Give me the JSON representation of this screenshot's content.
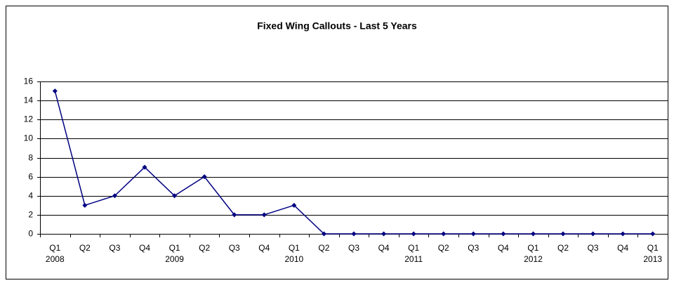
{
  "chart_data": {
    "type": "line",
    "title": "Fixed Wing Callouts - Last 5 Years",
    "categories": [
      "Q1",
      "Q2",
      "Q3",
      "Q4",
      "Q1",
      "Q2",
      "Q3",
      "Q4",
      "Q1",
      "Q2",
      "Q3",
      "Q4",
      "Q1",
      "Q2",
      "Q3",
      "Q4",
      "Q1",
      "Q2",
      "Q3",
      "Q4",
      "Q1"
    ],
    "year_labels": [
      "2008",
      null,
      null,
      null,
      "2009",
      null,
      null,
      null,
      "2010",
      null,
      null,
      null,
      "2011",
      null,
      null,
      null,
      "2012",
      null,
      null,
      null,
      "2013"
    ],
    "values": [
      15,
      3,
      4,
      7,
      4,
      6,
      2,
      2,
      3,
      0,
      0,
      0,
      0,
      0,
      0,
      0,
      0,
      0,
      0,
      0,
      0
    ],
    "color": "#000080",
    "ylim": [
      0,
      16
    ],
    "yticks": [
      0,
      2,
      4,
      6,
      8,
      10,
      12,
      14,
      16
    ],
    "grid": true
  }
}
